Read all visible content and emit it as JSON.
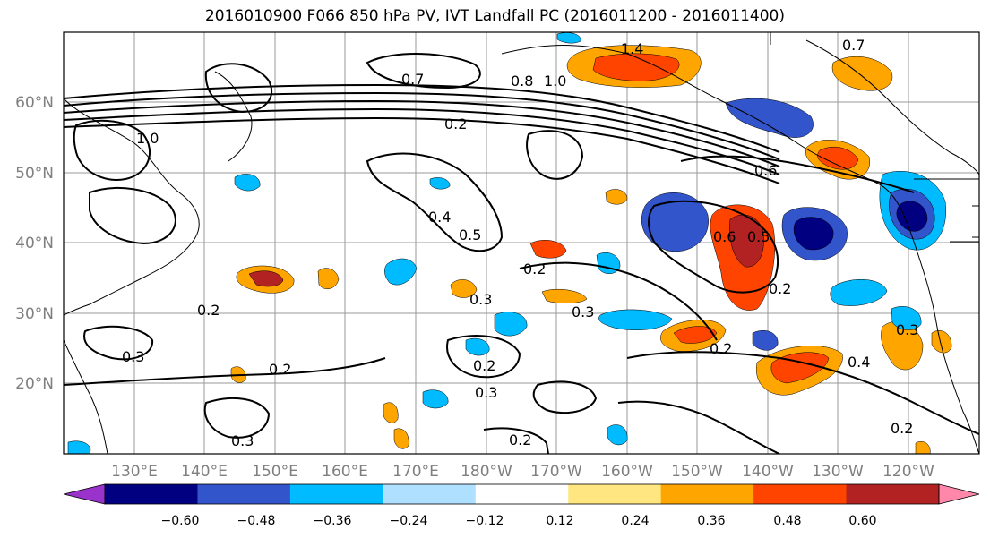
{
  "title": "2016010900 F066 850 hPa PV, IVT Landfall PC (2016011200 - 2016011400)",
  "map": {
    "lat_ticks": [
      "60°N",
      "50°N",
      "40°N",
      "30°N",
      "20°N"
    ],
    "lon_ticks": [
      "130°E",
      "140°E",
      "150°E",
      "160°E",
      "170°E",
      "180°W",
      "170°W",
      "160°W",
      "150°W",
      "140°W",
      "130°W",
      "120°W"
    ],
    "contour_labels": [
      "1.4",
      "0.7",
      "0.7",
      "0.8",
      "1.0",
      "1.0",
      "0.2",
      "0.4",
      "0.5",
      "0.6",
      "0.6",
      "0.5",
      "0.2",
      "0.3",
      "0.2",
      "0.3",
      "0.2",
      "0.3",
      "0.2",
      "0.3",
      "0.2",
      "0.3",
      "0.2",
      "0.4",
      "0.2",
      "0.3",
      "0.2"
    ]
  },
  "colorbar": {
    "tick_labels": [
      "−0.60",
      "−0.48",
      "−0.36",
      "−0.24",
      "−0.12",
      "0.12",
      "0.24",
      "0.36",
      "0.48",
      "0.60"
    ],
    "colors": [
      "#9933cc",
      "#000080",
      "#3355cc",
      "#00bbff",
      "#b0e0ff",
      "#ffffff",
      "#ffe680",
      "#ffa500",
      "#ff4400",
      "#b22222",
      "#ff88aa"
    ]
  }
}
